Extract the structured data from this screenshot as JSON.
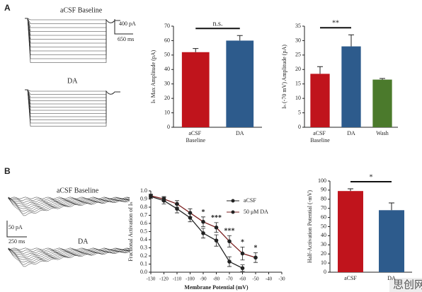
{
  "figure": {
    "panel_labels": [
      "A",
      "B"
    ],
    "traces": [
      {
        "labels": [
          "aCSF Baseline",
          "DA"
        ],
        "scale_y": "400 pA",
        "scale_x": "650 ms"
      },
      {
        "labels": [
          "aCSF Baseline",
          "DA"
        ],
        "scale_y": "50 pA",
        "scale_x": "250 ms"
      }
    ],
    "watermark": "思创网"
  },
  "chart_data": [
    {
      "type": "bar",
      "ylabel": "Iₕ Max Amplitude (pA)",
      "categories": [
        "aCSF Baseline",
        "DA"
      ],
      "values": [
        52,
        60
      ],
      "errors": [
        2.5,
        3.5
      ],
      "colors": [
        "#c0141c",
        "#2d5b8c"
      ],
      "ylim": [
        0,
        70
      ],
      "yticks": [
        0,
        10,
        20,
        30,
        40,
        50,
        60,
        70
      ],
      "significance": "n.s."
    },
    {
      "type": "bar",
      "ylabel": "Iₕ (-70 mV) Amplitude (pA)",
      "categories": [
        "aCSF Baseline",
        "DA",
        "Wash"
      ],
      "values": [
        18.5,
        28,
        16.5
      ],
      "errors": [
        2.5,
        4,
        0.4
      ],
      "colors": [
        "#c0141c",
        "#2d5b8c",
        "#4b7a2c"
      ],
      "ylim": [
        0,
        35
      ],
      "yticks": [
        0,
        5,
        10,
        15,
        20,
        25,
        30,
        35
      ],
      "significance": "**"
    },
    {
      "type": "line",
      "xlabel": "Membrane Potential (mV)",
      "ylabel": "Fractional Activation of Iₕ",
      "x": [
        -130,
        -120,
        -110,
        -100,
        -90,
        -80,
        -70,
        -60,
        -50
      ],
      "series": [
        {
          "name": "aCSF",
          "color": "#222222",
          "values": [
            0.93,
            0.88,
            0.78,
            0.67,
            0.48,
            0.39,
            0.13,
            0.05,
            null
          ],
          "errors": [
            0.02,
            0.04,
            0.05,
            0.05,
            0.06,
            0.07,
            0.06,
            0.04,
            null
          ]
        },
        {
          "name": "50 μM DA",
          "color": "#7a1f1f",
          "values": [
            0.94,
            0.9,
            0.84,
            0.73,
            0.62,
            0.55,
            0.38,
            0.23,
            0.18
          ],
          "errors": [
            0.02,
            0.03,
            0.04,
            0.05,
            0.06,
            0.06,
            0.07,
            0.08,
            0.06
          ]
        }
      ],
      "xlim": [
        -130,
        -30
      ],
      "xticks": [
        -130,
        -120,
        -110,
        -100,
        -90,
        -80,
        -70,
        -60,
        -50,
        -40,
        -30
      ],
      "ylim": [
        0,
        1
      ],
      "yticks": [
        {
          "value": 0,
          "label": "0.0"
        },
        0.1,
        0.2,
        0.3,
        0.4,
        0.5,
        0.6,
        0.7,
        0.8,
        0.9,
        {
          "value": 1,
          "label": "1.0"
        }
      ],
      "legend": "upper right",
      "annotations": [
        {
          "x": -90,
          "text": "*"
        },
        {
          "x": -80,
          "text": "***"
        },
        {
          "x": -70,
          "text": "***"
        },
        {
          "x": -60,
          "text": "*"
        },
        {
          "x": -50,
          "text": "*"
        }
      ]
    },
    {
      "type": "bar",
      "ylabel": "Half-Activation Potential (-mV)",
      "categories": [
        "aCSF",
        "DA"
      ],
      "values": [
        89,
        68
      ],
      "errors": [
        2.5,
        8
      ],
      "colors": [
        "#c0141c",
        "#2d5b8c"
      ],
      "ylim": [
        0,
        100
      ],
      "yticks": [
        0,
        10,
        20,
        30,
        40,
        50,
        60,
        70,
        80,
        90,
        100
      ],
      "significance": "*"
    }
  ]
}
